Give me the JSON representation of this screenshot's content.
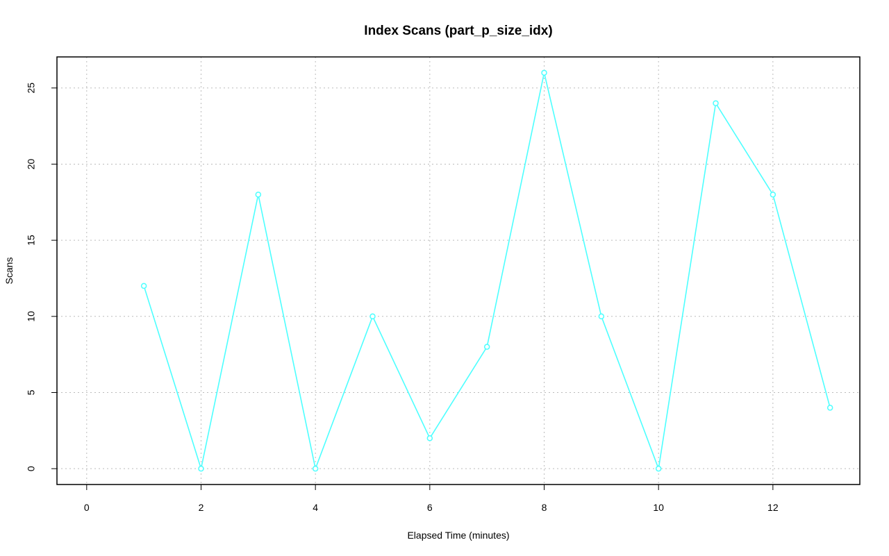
{
  "chart_data": {
    "type": "line",
    "title": "Index Scans (part_p_size_idx)",
    "x_label": "Elapsed Time (minutes)",
    "y_label": "Scans",
    "x": [
      1,
      2,
      3,
      4,
      5,
      6,
      7,
      8,
      9,
      10,
      11,
      12,
      13
    ],
    "series": [
      {
        "name": "part_p_size_idx",
        "color": "#4dffff",
        "values": [
          12,
          0,
          18,
          0,
          10,
          2,
          8,
          26,
          10,
          0,
          24,
          18,
          4
        ]
      }
    ],
    "xlim": [
      -0.52,
      13.52
    ],
    "xticks": [
      0,
      2,
      4,
      6,
      8,
      10,
      12
    ],
    "ylim": [
      -1.04,
      27.04
    ],
    "yticks": [
      0,
      5,
      10,
      15,
      20,
      25
    ],
    "grid": true
  }
}
